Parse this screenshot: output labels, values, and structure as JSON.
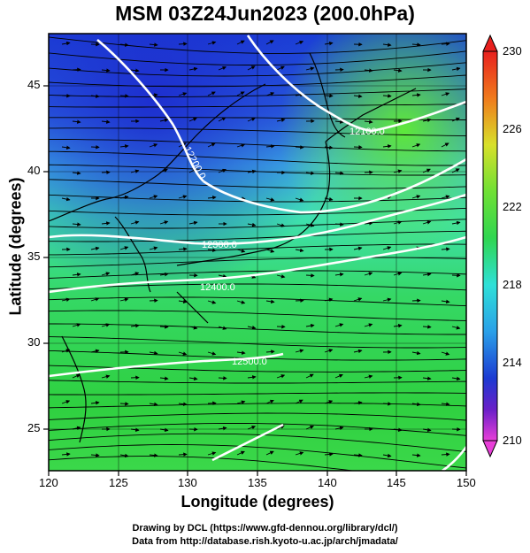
{
  "title": "MSM 03Z24Jun2023 (200.0hPa)",
  "x_axis": {
    "label": "Longitude (degrees)",
    "ticks": [
      "120",
      "125",
      "130",
      "135",
      "140",
      "145",
      "150"
    ]
  },
  "y_axis": {
    "label": "Latitude  (degrees)",
    "ticks": [
      "25",
      "30",
      "35",
      "40",
      "45"
    ]
  },
  "colorbar": {
    "ticks": [
      "230",
      "226",
      "222",
      "218",
      "214",
      "210"
    ]
  },
  "contour_labels": [
    "12100.0",
    "12200.0",
    "12300.0",
    "12400.0",
    "12500.0"
  ],
  "credits": {
    "line1": "Drawing by DCL (https://www.gfd-dennou.org/library/dcl/)",
    "line2": "Data from http://database.rish.kyoto-u.ac.jp/arch/jmadata/"
  }
}
